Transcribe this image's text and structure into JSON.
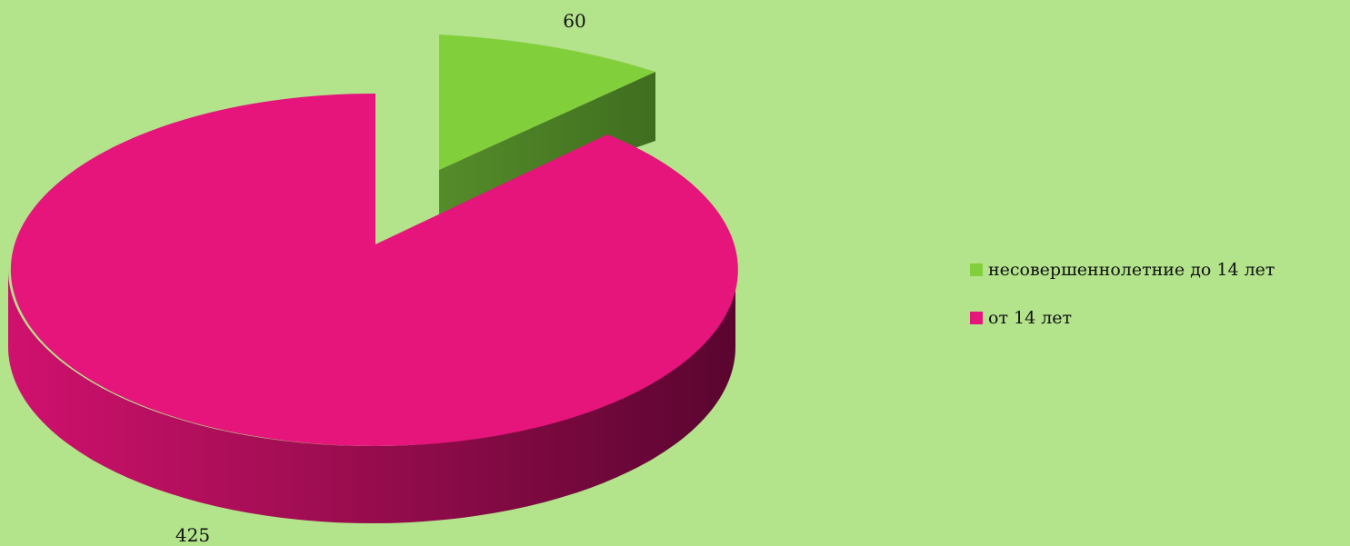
{
  "chart_data": {
    "type": "pie",
    "title": "",
    "three_d": true,
    "exploded_slice": "несовершеннолетние до 14 лет",
    "legend_position": "right",
    "slices": [
      {
        "name": "несовершеннолетние до 14 лет",
        "value": 60,
        "label": "60",
        "color": "#82cf3c",
        "side_color": "#4a7d23"
      },
      {
        "name": "от 14 лет",
        "value": 425,
        "label": "425",
        "color": "#e5157b",
        "side_color": "#8c0c49"
      }
    ]
  }
}
